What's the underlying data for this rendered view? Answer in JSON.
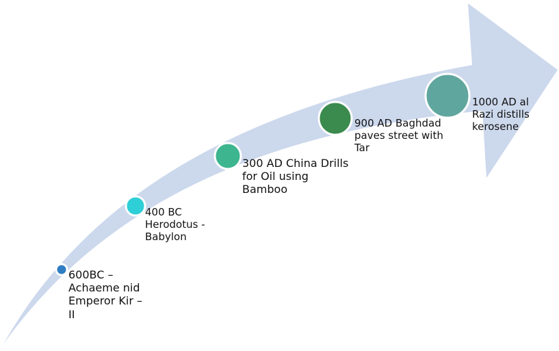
{
  "timeline": {
    "milestones": [
      {
        "label": "600BC – Achaeme nid Emperor Kir – II",
        "color": "#2f7ec4"
      },
      {
        "label": "400 BC Herodotus - Babylon",
        "color": "#2ecfd6"
      },
      {
        "label": "300 AD China Drills for Oil using Bamboo",
        "color": "#3db58f"
      },
      {
        "label": "900 AD Baghdad paves street with Tar",
        "color": "#3b8a4e"
      },
      {
        "label": "1000 AD al Razi distills kerosene",
        "color": "#5fa69e"
      }
    ],
    "arrow_color": "#ccd8ec"
  }
}
